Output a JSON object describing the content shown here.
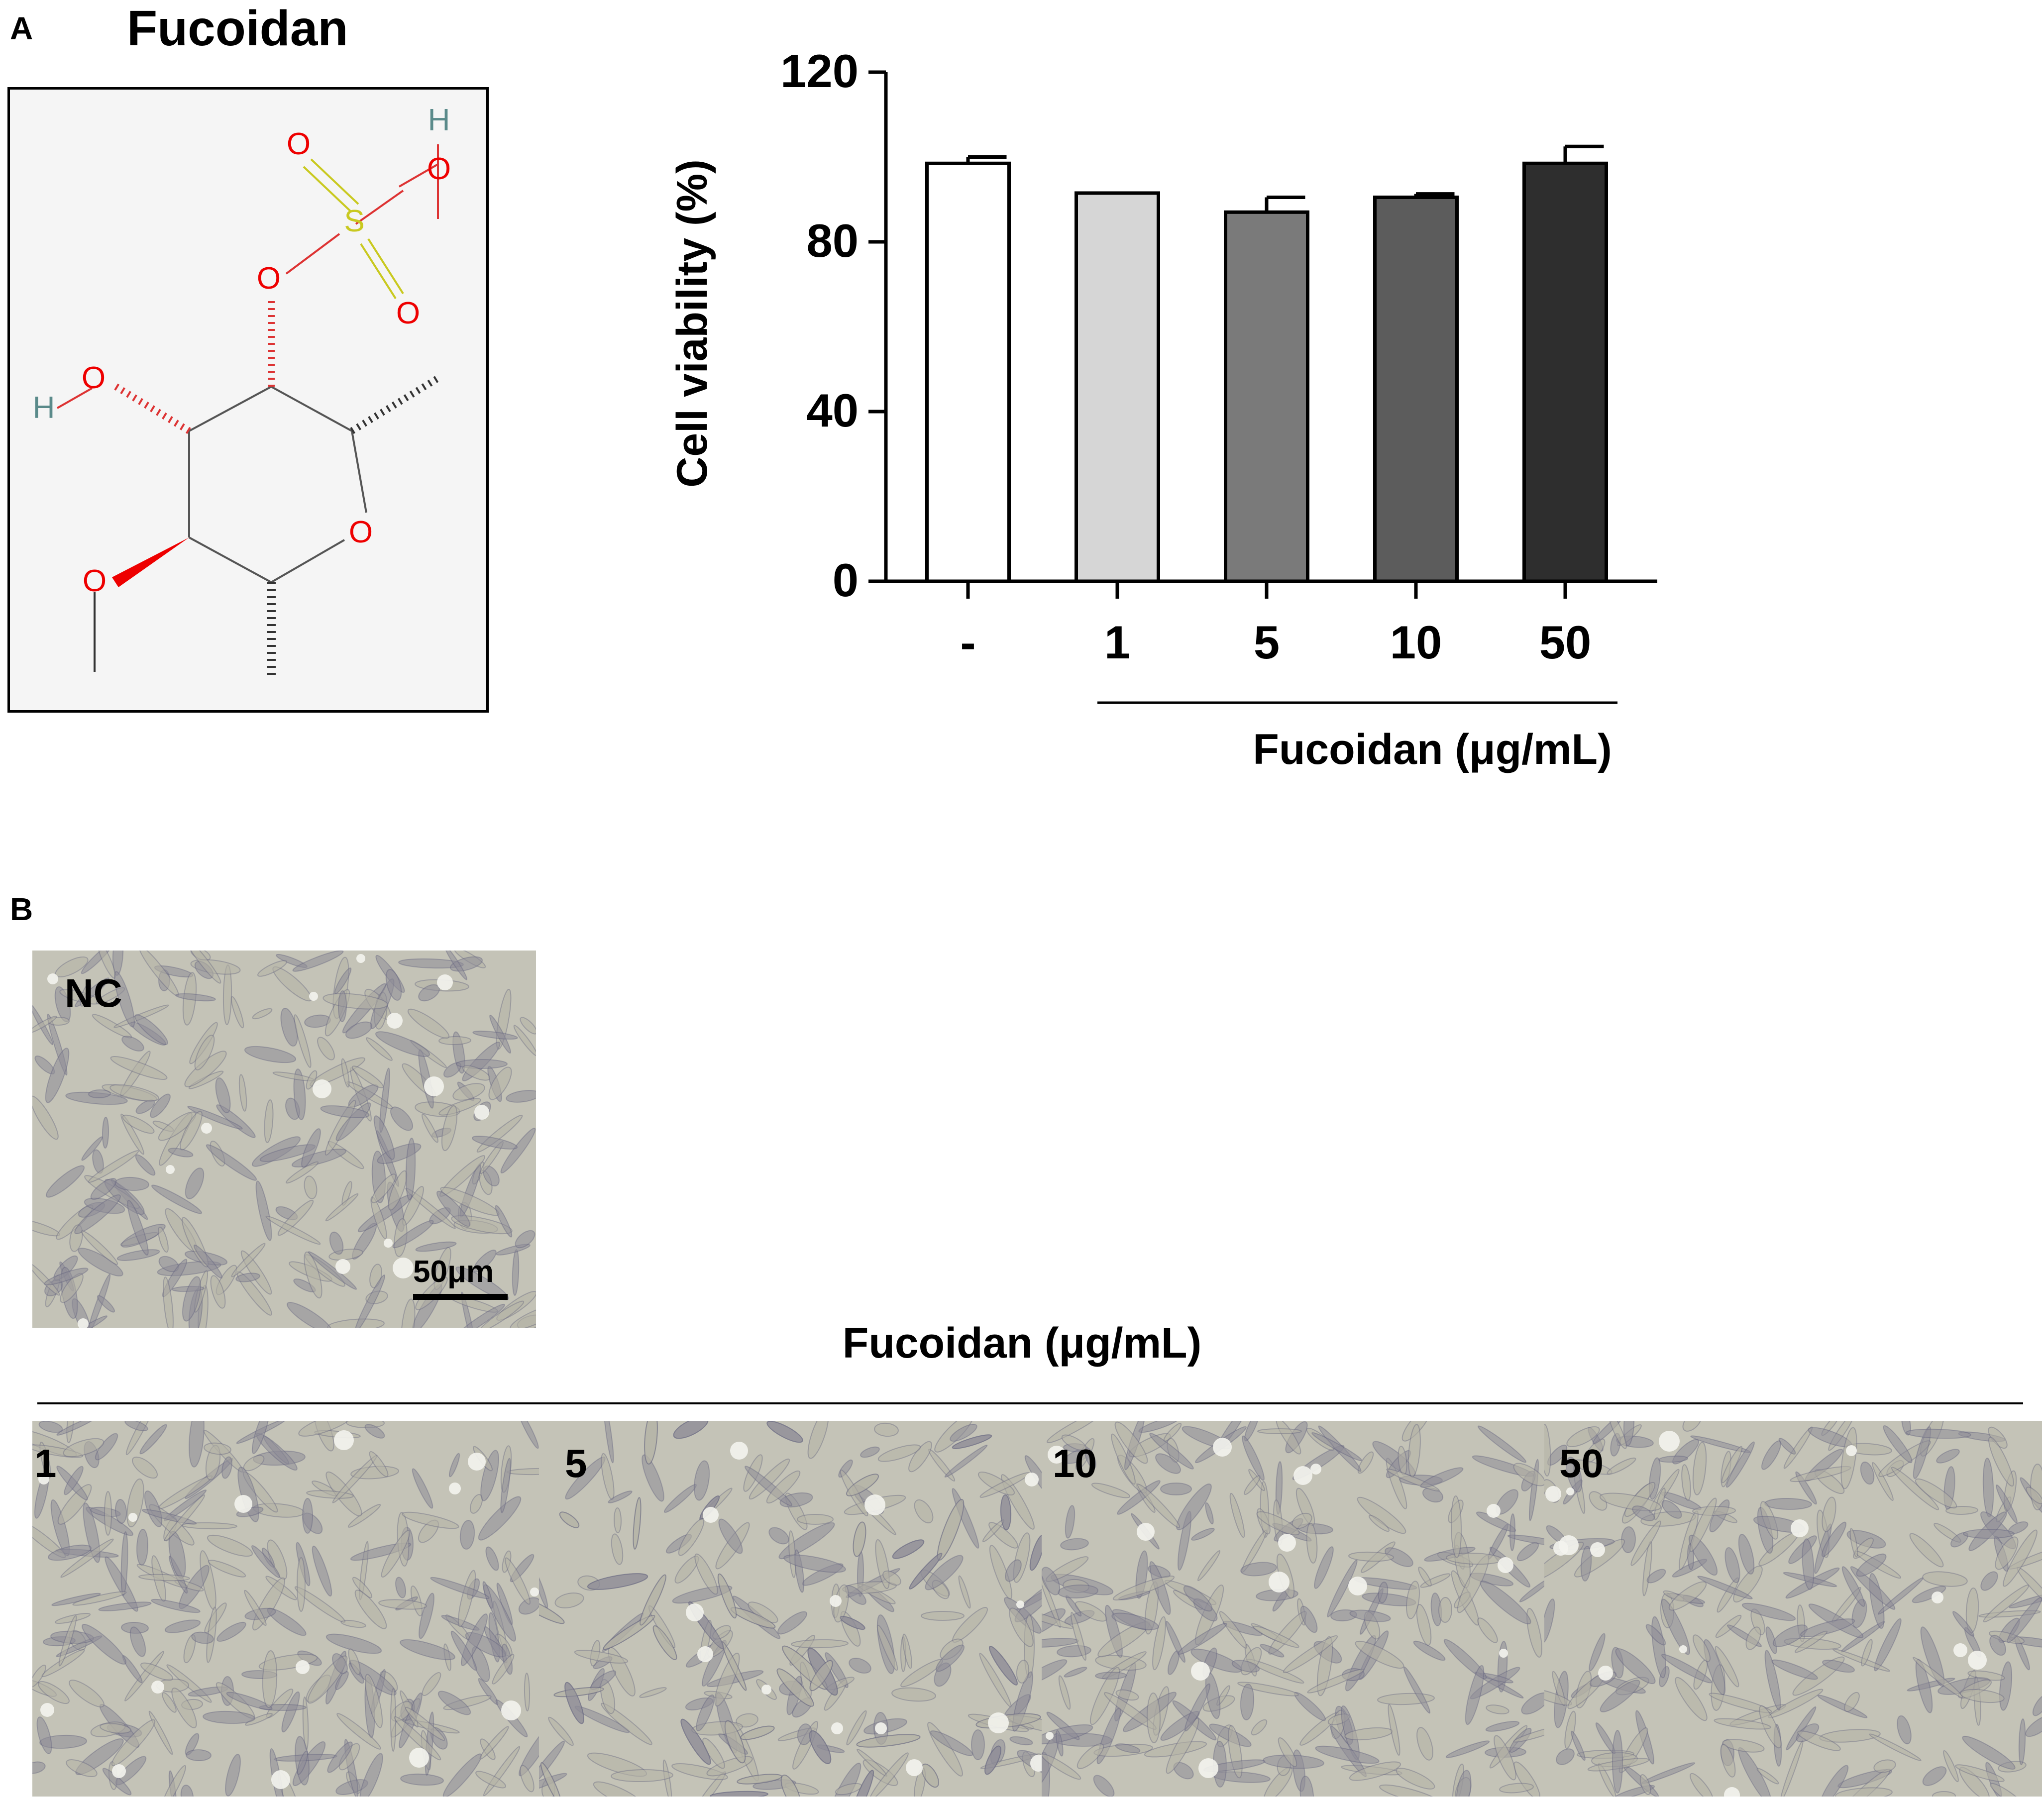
{
  "panel_a": {
    "letter": "A",
    "compound_title": "Fucoidan",
    "atoms": {
      "h": "H",
      "o": "O",
      "s": "S"
    }
  },
  "chart_data": {
    "type": "bar",
    "categories": [
      "-",
      "1",
      "5",
      "10",
      "50"
    ],
    "values": [
      98.5,
      91.5,
      87.0,
      90.5,
      98.5
    ],
    "errors": [
      1.5,
      0.3,
      3.5,
      0.8,
      4.0
    ],
    "bar_colors": [
      "#ffffff",
      "#d6d6d6",
      "#7a7a7a",
      "#5c5c5c",
      "#2e2e2e"
    ],
    "ylabel": "Cell viability (%)",
    "xlabel": "Fucoidan (μg/mL)",
    "ylim": [
      0,
      120
    ],
    "yticks": [
      "0",
      "40",
      "80",
      "120"
    ],
    "grid": false
  },
  "panel_b": {
    "letter": "B",
    "group_label": "Fucoidan (μg/mL)",
    "scale_bar": "50μm",
    "images": [
      {
        "id": "nc",
        "label": "NC"
      },
      {
        "id": "1",
        "label": "1"
      },
      {
        "id": "5",
        "label": "5"
      },
      {
        "id": "10",
        "label": "10"
      },
      {
        "id": "50",
        "label": "50"
      }
    ]
  }
}
